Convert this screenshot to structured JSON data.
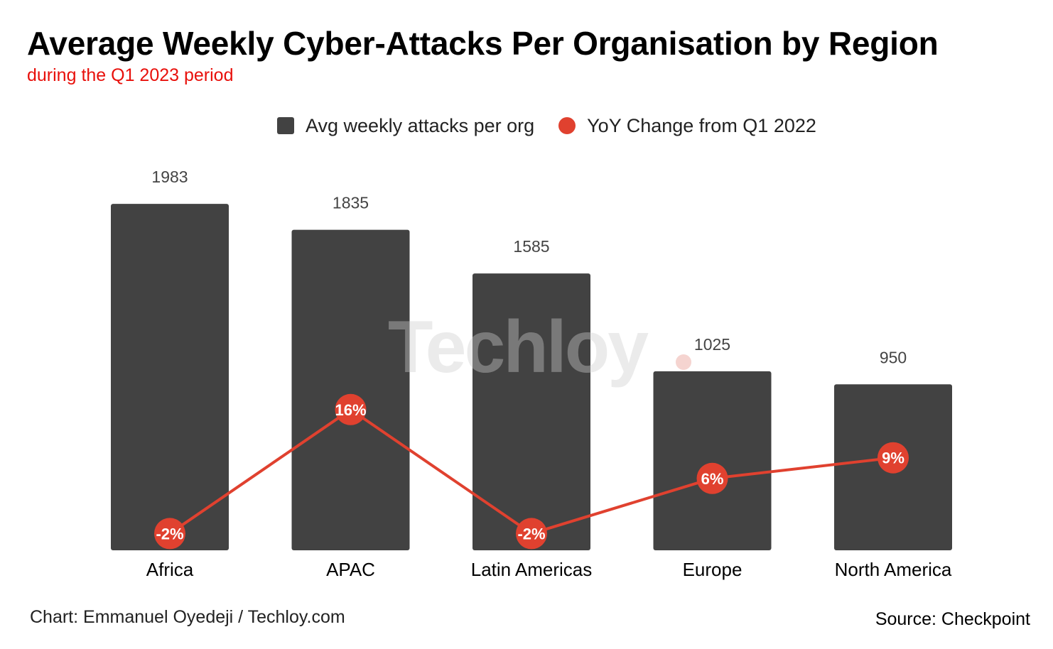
{
  "colors": {
    "bar": "#424242",
    "line": "#e0412f",
    "title": "#000000",
    "subtitle": "#e8100b"
  },
  "header": {
    "title": "Average Weekly Cyber-Attacks Per Organisation by Region",
    "subtitle": "during the Q1 2023 period"
  },
  "legend": {
    "bar_label": "Avg weekly attacks per org",
    "line_label": "YoY Change from Q1 2022"
  },
  "watermark": {
    "text": "Techloy"
  },
  "footer": {
    "credit": "Chart: Emmanuel Oyedeji / Techloy.com",
    "source": "Source: Checkpoint"
  },
  "chart_data": {
    "type": "bar",
    "title": "Average Weekly Cyber-Attacks Per Organisation by Region",
    "subtitle": "during the Q1 2023 period",
    "categories": [
      "Africa",
      "APAC",
      "Latin Americas",
      "Europe",
      "North America"
    ],
    "series": [
      {
        "name": "Avg weekly attacks per org",
        "type": "bar",
        "values": [
          1983,
          1835,
          1585,
          1025,
          950
        ],
        "labels": [
          "1983",
          "1835",
          "1585",
          "1025",
          "950"
        ]
      },
      {
        "name": "YoY Change from Q1 2022",
        "type": "line",
        "values": [
          -2,
          16,
          -2,
          6,
          9
        ],
        "labels": [
          "-2%",
          "16%",
          "-2%",
          "6%",
          "9%"
        ]
      }
    ],
    "ylim": [
      0,
      2000
    ],
    "y2lim": [
      -5,
      25
    ],
    "xlabel": "",
    "ylabel": "",
    "grid": false,
    "legend_position": "top-center"
  }
}
